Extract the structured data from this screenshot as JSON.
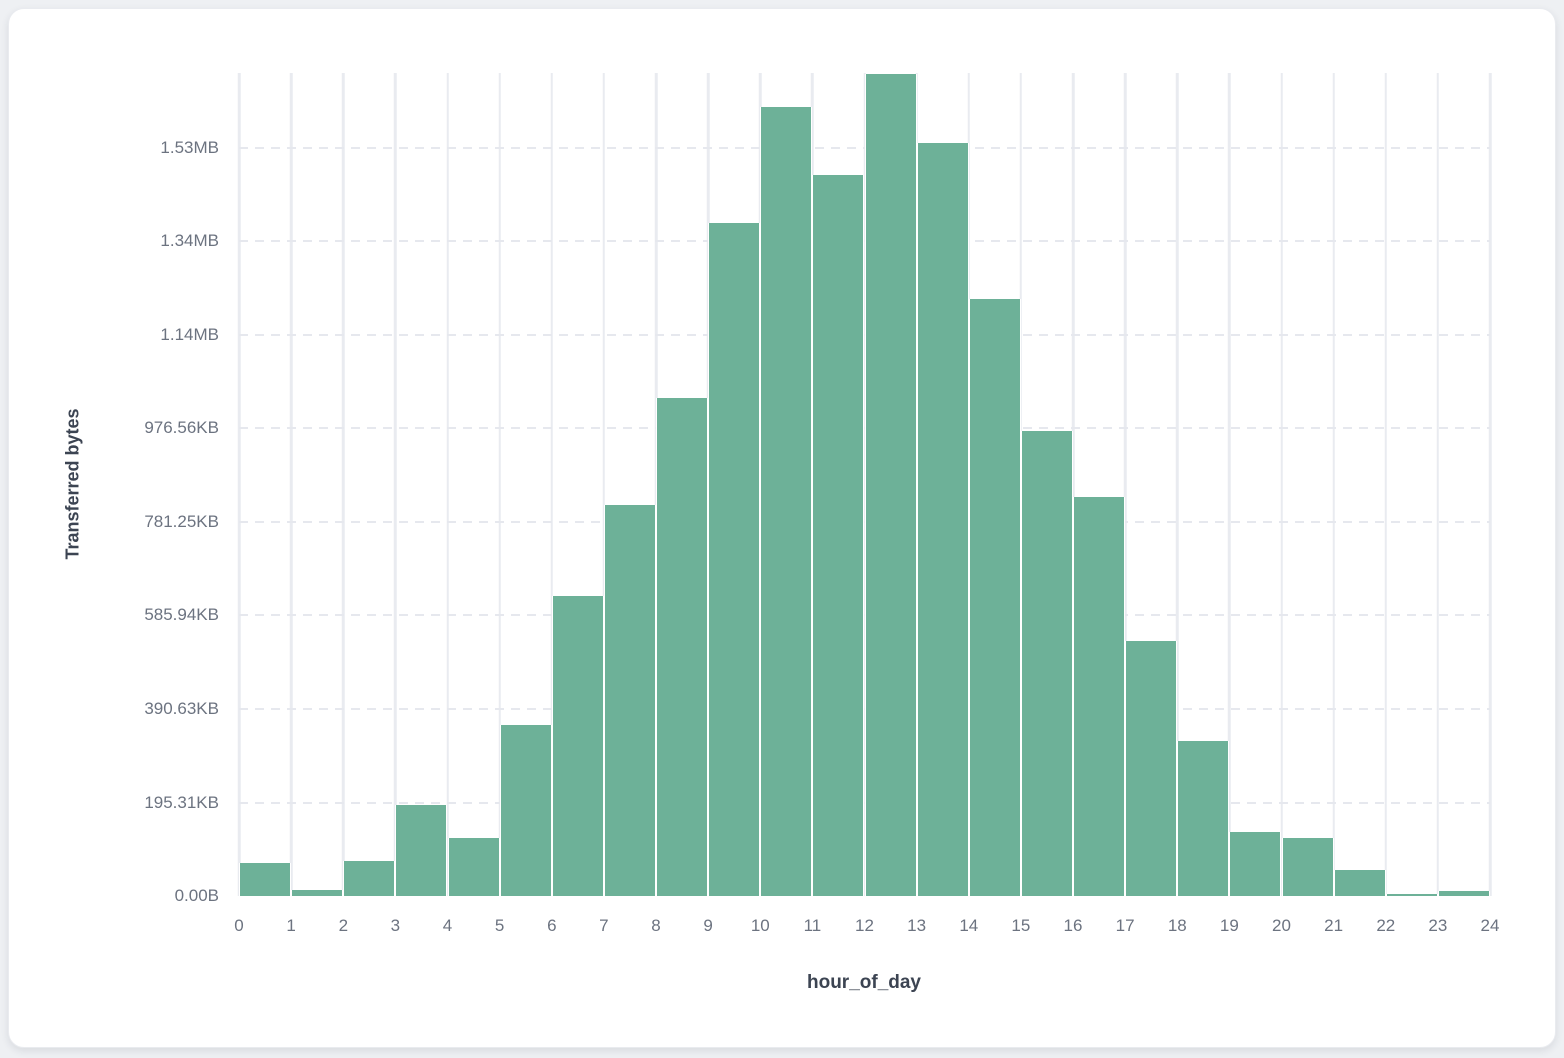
{
  "chart_data": {
    "type": "bar",
    "title": "",
    "xlabel": "hour_of_day",
    "ylabel": "Transferred bytes",
    "categories": [
      0,
      1,
      2,
      3,
      4,
      5,
      6,
      7,
      8,
      9,
      10,
      11,
      12,
      13,
      14,
      15,
      16,
      17,
      18,
      19,
      20,
      21,
      22,
      23
    ],
    "values": [
      71000,
      13000,
      75000,
      194000,
      125000,
      366000,
      641000,
      836000,
      1066000,
      1439000,
      1687000,
      1541000,
      1758000,
      1611000,
      1276000,
      994000,
      854000,
      546000,
      331000,
      138000,
      125000,
      56000,
      4000,
      11000
    ],
    "values_unit": "bytes",
    "x_tick_labels": [
      "0",
      "1",
      "2",
      "3",
      "4",
      "5",
      "6",
      "7",
      "8",
      "9",
      "10",
      "11",
      "12",
      "13",
      "14",
      "15",
      "16",
      "17",
      "18",
      "19",
      "20",
      "21",
      "22",
      "23",
      "24"
    ],
    "y_tick_labels": [
      "0.00B",
      "195.31KB",
      "390.63KB",
      "585.94KB",
      "781.25KB",
      "976.56KB",
      "1.14MB",
      "1.34MB",
      "1.53MB"
    ],
    "y_tick_values": [
      0,
      200000,
      400000,
      600000,
      800000,
      1000000,
      1200000,
      1400000,
      1600000
    ],
    "ylim": [
      0,
      1760000
    ],
    "bar_color": "#6db198",
    "grid": true,
    "legend_position": "none"
  }
}
